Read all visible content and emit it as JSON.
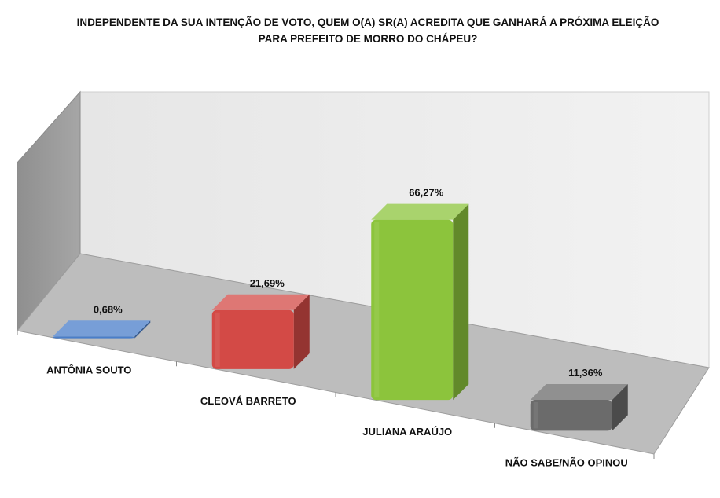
{
  "chart_data": {
    "type": "bar",
    "title_lines": [
      "INDEPENDENTE DA SUA INTENÇÃO DE VOTO, QUEM O(A) SR(A) ACREDITA QUE GANHARÁ A PRÓXIMA ELEIÇÃO",
      "PARA PREFEITO DE MORRO DO CHÁPEU?"
    ],
    "categories": [
      "ANTÔNIA SOUTO",
      "CLEOVÁ BARRETO",
      "JULIANA ARAÚJO",
      "NÃO SABE/NÃO OPINOU"
    ],
    "values": [
      0.68,
      21.69,
      66.27,
      11.36
    ],
    "value_labels": [
      "0,68%",
      "21,69%",
      "66,27%",
      "11,36%"
    ],
    "colors": [
      "#4a7ec9",
      "#d34a46",
      "#8cc43c",
      "#6b6b6b"
    ],
    "ylim": [
      0,
      100
    ],
    "grid": false,
    "legend": "none",
    "xlabel": "",
    "ylabel": ""
  }
}
